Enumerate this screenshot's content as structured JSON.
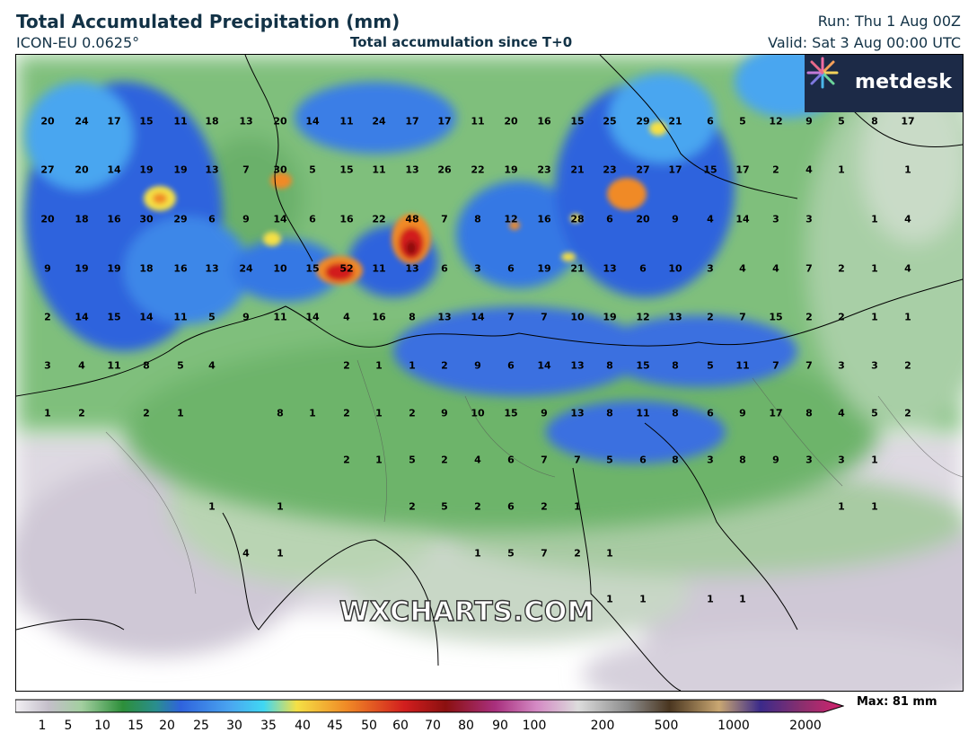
{
  "header": {
    "title": "Total Accumulated Precipitation (mm)",
    "model": "ICON-EU 0.0625°",
    "subtitle": "Total accumulation since T+0",
    "run": "Run: Thu 1 Aug 00Z",
    "valid": "Valid: Sat 3 Aug 00:00 UTC"
  },
  "brand": {
    "logo_text": "metdesk",
    "watermark": "WXCHARTS.COM"
  },
  "legend": {
    "ticks": [
      "1",
      "5",
      "10",
      "15",
      "20",
      "25",
      "30",
      "35",
      "40",
      "45",
      "50",
      "60",
      "70",
      "80",
      "90",
      "100",
      "200",
      "500",
      "1000",
      "2000"
    ],
    "max_label": "Max: 81 mm"
  },
  "colors": {
    "light_grey": "#d8d3dc",
    "grey": "#b9b2bf",
    "light_green": "#a9cfa4",
    "green": "#5fae5e",
    "dark_green": "#2d8f3a",
    "blue": "#2f63dd",
    "light_blue": "#4aa6f0",
    "cyan": "#40d7f2",
    "yellow": "#f5e045",
    "orange": "#f08a26",
    "red": "#d21e1e",
    "dark_red": "#8b1010",
    "logo_bg": "#1c2a47"
  },
  "map_values": [
    [
      "20",
      "24",
      "17",
      "15",
      "11",
      "18",
      "13",
      "20",
      "14",
      "11",
      "24",
      "17",
      "17",
      "11",
      "20",
      "16",
      "15",
      "25",
      "29",
      "21",
      "6",
      "5",
      "12",
      "9",
      "5",
      "8",
      "17"
    ],
    [
      "27",
      "20",
      "14",
      "19",
      "19",
      "13",
      "7",
      "30",
      "5",
      "15",
      "11",
      "13",
      "26",
      "22",
      "19",
      "23",
      "21",
      "23",
      "27",
      "17",
      "15",
      "17",
      "2",
      "4",
      "1",
      "1"
    ],
    [
      "20",
      "18",
      "16",
      "30",
      "29",
      "6",
      "9",
      "14",
      "6",
      "16",
      "22",
      "48",
      "7",
      "8",
      "12",
      "16",
      "28",
      "6",
      "20",
      "9",
      "4",
      "14",
      "3",
      "3",
      "1",
      "4"
    ],
    [
      "9",
      "19",
      "19",
      "18",
      "16",
      "13",
      "24",
      "10",
      "15",
      "52",
      "11",
      "13",
      "6",
      "3",
      "6",
      "19",
      "21",
      "13",
      "6",
      "10",
      "3",
      "4",
      "4",
      "7",
      "2",
      "1",
      "4"
    ],
    [
      "2",
      "14",
      "15",
      "14",
      "11",
      "5",
      "9",
      "11",
      "14",
      "4",
      "16",
      "8",
      "13",
      "14",
      "7",
      "7",
      "10",
      "19",
      "12",
      "13",
      "2",
      "7",
      "15",
      "2",
      "2",
      "1",
      "1"
    ],
    [
      "3",
      "4",
      "11",
      "8",
      "5",
      "4",
      "2",
      "1",
      "1",
      "2",
      "9",
      "6",
      "14",
      "13",
      "8",
      "15",
      "8",
      "5",
      "11",
      "7",
      "7",
      "3",
      "3",
      "2"
    ],
    [
      "1",
      "2",
      "2",
      "1",
      "8",
      "1",
      "2",
      "1",
      "2",
      "9",
      "10",
      "15",
      "9",
      "13",
      "8",
      "11",
      "8",
      "6",
      "9",
      "17",
      "8",
      "4",
      "5",
      "2"
    ],
    [
      "2",
      "1",
      "5",
      "2",
      "4",
      "6",
      "7",
      "7",
      "5",
      "6",
      "8",
      "3",
      "8",
      "9",
      "3",
      "3",
      "1"
    ],
    [
      "1",
      "1",
      "2",
      "5",
      "2",
      "6",
      "2",
      "1",
      "1",
      "1"
    ],
    [
      "4",
      "1",
      "1",
      "5",
      "7",
      "2",
      "1"
    ],
    [
      "1",
      "1",
      "1",
      "1"
    ]
  ]
}
